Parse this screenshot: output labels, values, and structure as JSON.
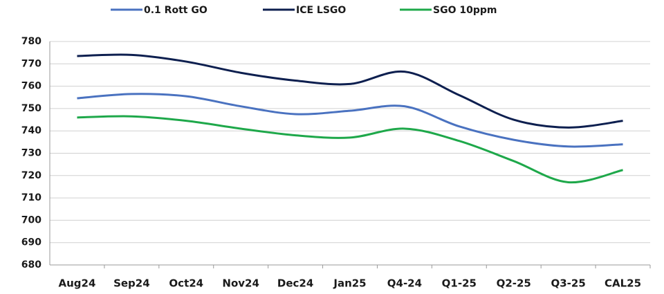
{
  "chart_data": {
    "type": "line",
    "categories": [
      "Aug24",
      "Sep24",
      "Oct24",
      "Nov24",
      "Dec24",
      "Jan25",
      "Q4-24",
      "Q1-25",
      "Q2-25",
      "Q3-25",
      "CAL25"
    ],
    "series": [
      {
        "name": "0.1 Rott GO",
        "color": "#4a72c0",
        "values": [
          754.6,
          756.5,
          755.5,
          751,
          747.5,
          749,
          751,
          742,
          736,
          733,
          734
        ]
      },
      {
        "name": "ICE LSGO",
        "color": "#0d1f4f",
        "values": [
          773.5,
          774,
          771,
          766,
          762.5,
          761,
          766.5,
          756,
          745,
          741.5,
          744.5
        ]
      },
      {
        "name": "SGO 10ppm",
        "color": "#1ea84a",
        "values": [
          746,
          746.5,
          744.5,
          741,
          738,
          737,
          741,
          735.5,
          726.5,
          717,
          722.5
        ]
      }
    ],
    "ylim": [
      680,
      780
    ],
    "yticks": [
      680,
      690,
      700,
      710,
      720,
      730,
      740,
      750,
      760,
      770,
      780
    ],
    "grid": true,
    "legend": "top"
  }
}
